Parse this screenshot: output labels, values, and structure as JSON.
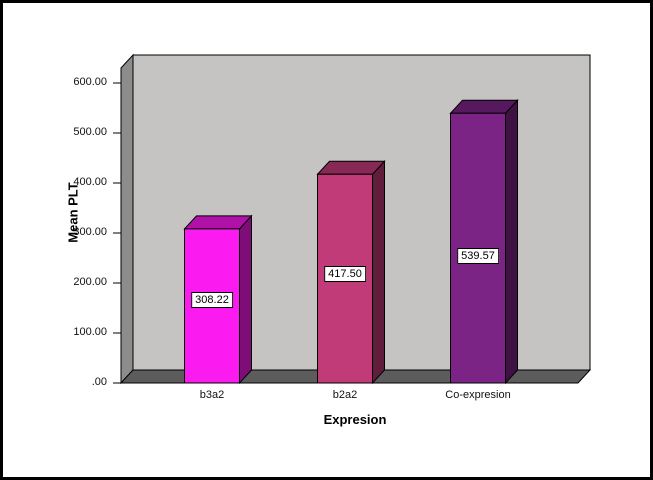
{
  "chart_data": {
    "type": "bar",
    "title": "",
    "xlabel": "Expresion",
    "ylabel": "Mean PLT",
    "categories": [
      "b3a2",
      "b2a2",
      "Co-expresion"
    ],
    "values": [
      308.22,
      417.5,
      539.57
    ],
    "value_labels": [
      "308.22",
      "417.50",
      "539.57"
    ],
    "series_colors": [
      "#fb1af0",
      "#c03b78",
      "#7c2386"
    ],
    "ylim": [
      0,
      630
    ],
    "yticks": [
      {
        "value": 0,
        "label": ".00"
      },
      {
        "value": 100,
        "label": "100.00"
      },
      {
        "value": 200,
        "label": "200.00"
      },
      {
        "value": 300,
        "label": "300.00"
      },
      {
        "value": 400,
        "label": "400.00"
      },
      {
        "value": 500,
        "label": "500.00"
      },
      {
        "value": 600,
        "label": "600.00"
      }
    ],
    "grid": false,
    "legend": null,
    "style": {
      "back_wall": "#c6c3c3",
      "left_wall": "#8c8c8c",
      "floor": "#5c5c5c",
      "frame_border": "#000000",
      "background": "#ffffff"
    }
  }
}
